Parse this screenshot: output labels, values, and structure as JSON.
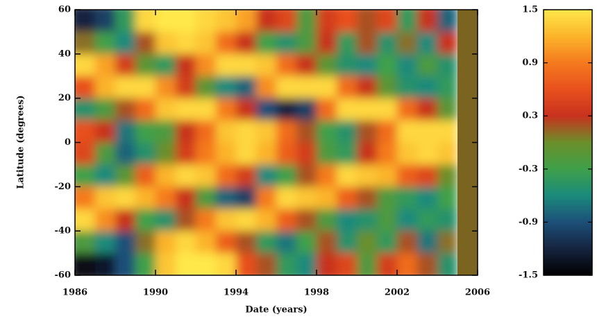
{
  "chart_data": {
    "type": "heatmap",
    "xlabel": "Date (years)",
    "ylabel": "Latitude (degrees)",
    "x": [
      1986.5,
      1987.5,
      1988.5,
      1989.5,
      1990.5,
      1991.5,
      1992.5,
      1993.5,
      1994.5,
      1995.5,
      1996.5,
      1997.5,
      1998.5,
      1999.5,
      2000.5,
      2001.5,
      2002.5,
      2003.5,
      2004.5,
      2005.5
    ],
    "y": [
      55,
      45,
      35,
      25,
      15,
      5,
      -5,
      -15,
      -25,
      -35,
      -45,
      -55
    ],
    "z": [
      [
        -1.2,
        -1.0,
        -0.4,
        1.4,
        1.5,
        1.5,
        1.4,
        1.3,
        1.1,
        0.3,
        0.5,
        -0.2,
        0.4,
        0.6,
        0.2,
        0.5,
        -0.4,
        0.3,
        -0.8,
        null
      ],
      [
        0.1,
        -0.3,
        -0.6,
        0.2,
        1.3,
        1.4,
        1.3,
        0.8,
        0.3,
        -0.3,
        -0.5,
        -0.2,
        0.3,
        -0.4,
        0.2,
        -0.5,
        0.1,
        -0.6,
        0.3,
        null
      ],
      [
        1.4,
        1.1,
        0.4,
        -0.1,
        -0.4,
        0.3,
        1.0,
        1.4,
        1.4,
        1.3,
        0.8,
        0.3,
        -0.1,
        -0.5,
        -0.6,
        -0.3,
        -0.6,
        -0.2,
        -0.5,
        null
      ],
      [
        0.6,
        1.2,
        1.4,
        1.4,
        1.0,
        0.4,
        -0.1,
        -0.6,
        -0.8,
        1.0,
        1.4,
        1.4,
        1.4,
        0.8,
        0.3,
        -0.1,
        -0.5,
        -0.6,
        -0.4,
        null
      ],
      [
        -0.5,
        -0.2,
        0.2,
        0.8,
        1.3,
        1.4,
        1.4,
        0.9,
        0.3,
        -0.9,
        -1.2,
        -1.0,
        0.8,
        1.4,
        1.4,
        1.4,
        0.8,
        0.3,
        -0.1,
        null
      ],
      [
        0.6,
        0.3,
        -0.7,
        -0.3,
        -0.2,
        0.3,
        0.8,
        1.3,
        1.4,
        1.3,
        0.8,
        0.2,
        -0.3,
        -0.5,
        0.2,
        0.8,
        1.4,
        1.4,
        1.4,
        null
      ],
      [
        0.5,
        -0.2,
        -0.8,
        -0.5,
        0.0,
        0.4,
        0.9,
        1.2,
        1.4,
        1.2,
        0.7,
        0.4,
        -0.2,
        -0.4,
        0.3,
        0.9,
        1.3,
        1.4,
        1.3,
        null
      ],
      [
        -0.3,
        -0.6,
        -0.1,
        0.7,
        1.2,
        1.4,
        1.3,
        0.8,
        0.4,
        -0.6,
        -0.3,
        0.2,
        0.9,
        1.4,
        1.3,
        1.2,
        0.7,
        0.5,
        0.0,
        null
      ],
      [
        0.9,
        1.3,
        1.4,
        1.2,
        0.9,
        0.3,
        -0.2,
        -0.8,
        -1.0,
        0.9,
        1.4,
        1.3,
        1.2,
        0.7,
        0.2,
        -0.2,
        -0.4,
        -0.6,
        -0.3,
        null
      ],
      [
        1.4,
        1.0,
        0.3,
        -0.3,
        -0.5,
        0.2,
        0.9,
        1.3,
        1.4,
        1.2,
        0.7,
        0.2,
        -0.2,
        -0.6,
        -0.5,
        -0.2,
        -0.6,
        -0.4,
        -0.5,
        null
      ],
      [
        -0.2,
        -0.6,
        -0.9,
        0.1,
        1.2,
        1.4,
        1.2,
        0.7,
        0.2,
        -0.4,
        -0.7,
        -0.3,
        0.2,
        -0.5,
        0.0,
        -0.4,
        0.2,
        -0.7,
        0.1,
        null
      ],
      [
        -1.4,
        -1.3,
        -0.9,
        -0.3,
        1.3,
        1.5,
        1.5,
        1.4,
        0.6,
        0.2,
        -0.4,
        -0.6,
        0.3,
        0.5,
        -0.2,
        0.4,
        0.8,
        0.2,
        -0.5,
        null
      ]
    ],
    "xlim": [
      1986,
      2006
    ],
    "xticks": [
      1986,
      1990,
      1994,
      1998,
      2002,
      2006
    ],
    "ylim": [
      -60,
      60
    ],
    "yticks": [
      -60,
      -40,
      -20,
      0,
      20,
      40,
      60
    ],
    "zlim": [
      -1.5,
      1.5
    ],
    "zticks": [
      -1.5,
      -0.9,
      -0.3,
      0.3,
      0.9,
      1.5
    ],
    "colormap": [
      "#000000",
      "#16243f",
      "#1c4f78",
      "#1b8a7c",
      "#3fa04a",
      "#6b8f2a",
      "#c8321e",
      "#e8501e",
      "#f57a1e",
      "#fbb42a",
      "#ffe84a"
    ],
    "missing_color": "#7a6420"
  }
}
